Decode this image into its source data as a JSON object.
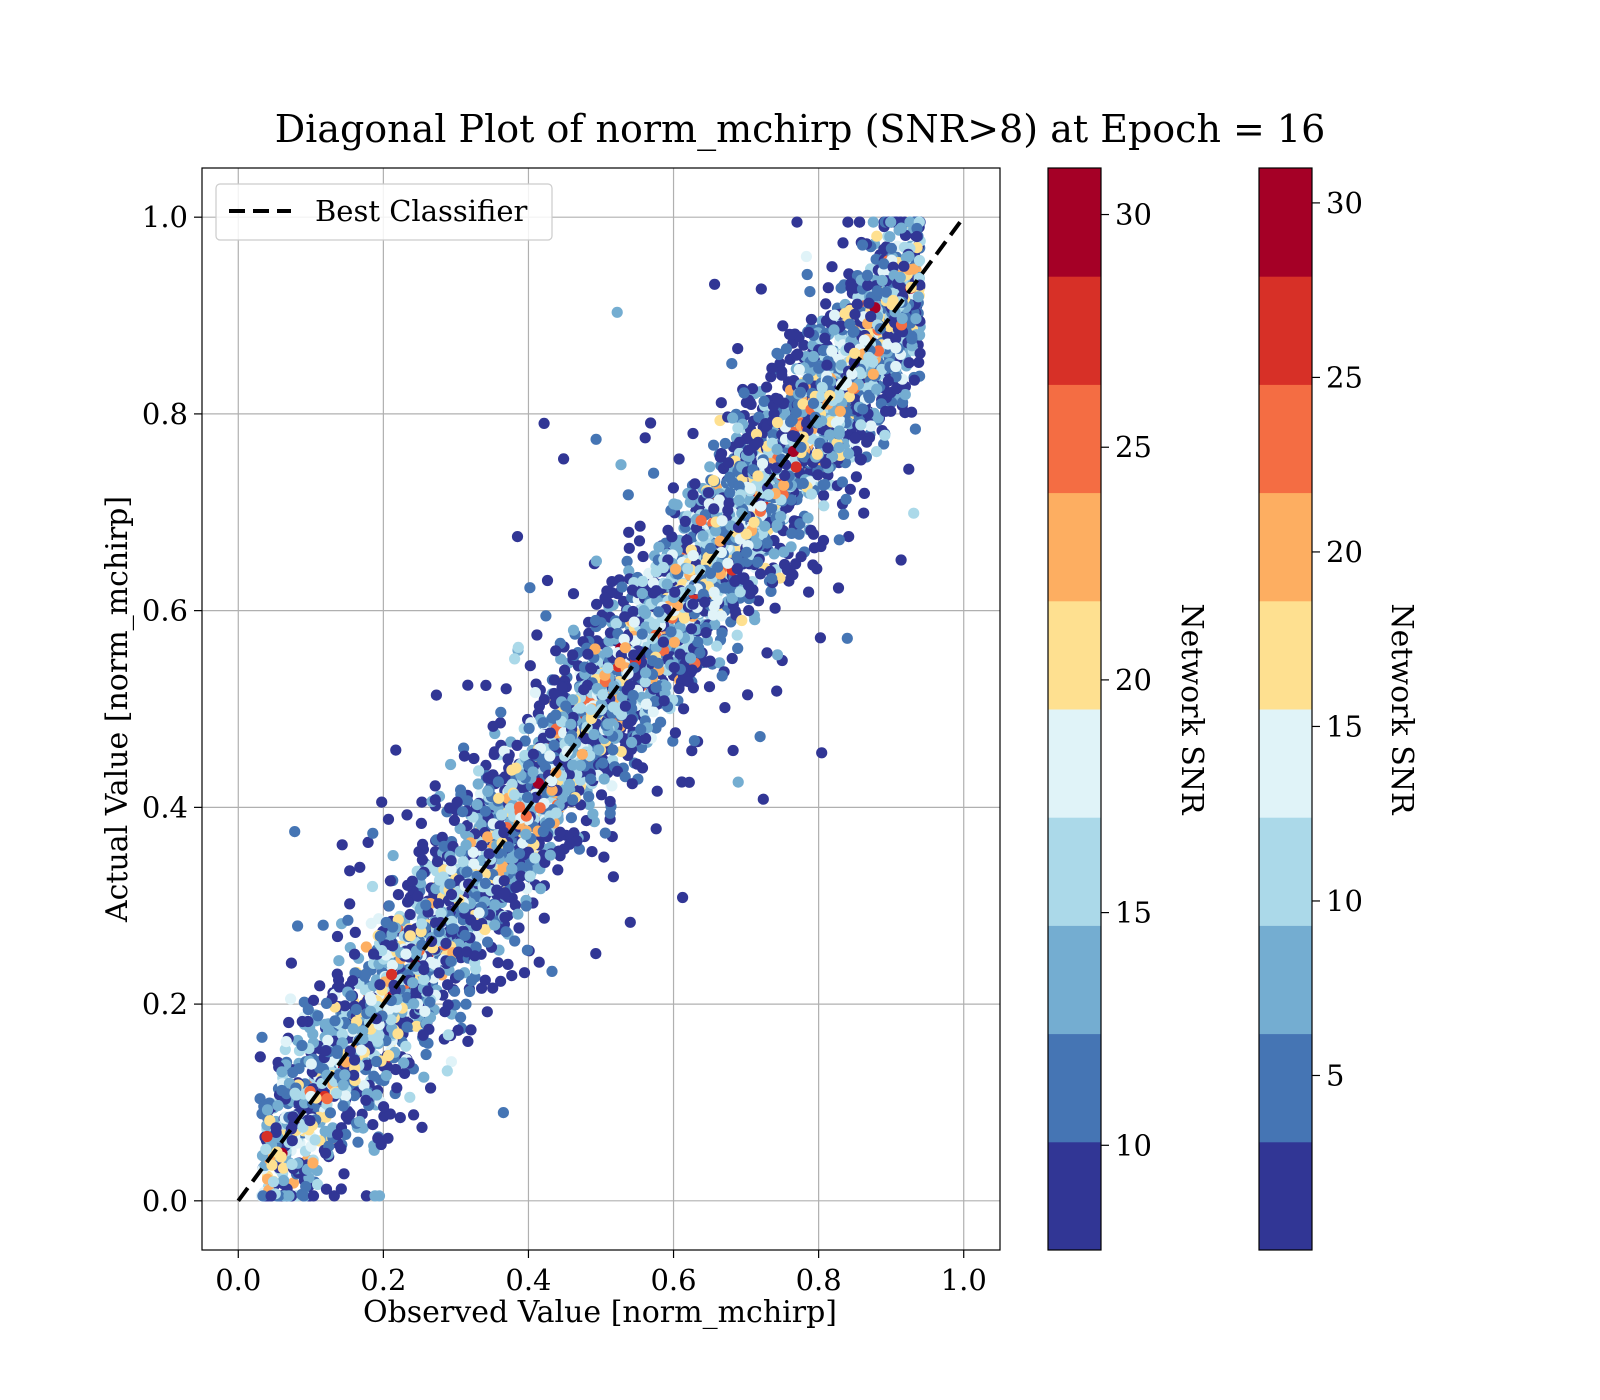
{
  "chart_data": {
    "type": "scatter",
    "title": "Diagonal Plot of norm_mchirp (SNR>8) at Epoch = 16",
    "xlabel": "Observed Value [norm_mchirp]",
    "ylabel": "Actual Value [norm_mchirp]",
    "xlim": [
      -0.05,
      1.05
    ],
    "ylim": [
      -0.05,
      1.05
    ],
    "x_ticks": [
      "0.0",
      "0.2",
      "0.4",
      "0.6",
      "0.8",
      "1.0"
    ],
    "y_ticks": [
      "0.0",
      "0.2",
      "0.4",
      "0.6",
      "0.8",
      "1.0"
    ],
    "grid": true,
    "legend": {
      "position": "top-left",
      "entries": [
        {
          "label": "Best Classifier",
          "style": "dashed",
          "color": "#000000"
        }
      ]
    },
    "reference_line": {
      "label": "Best Classifier",
      "x": [
        0.0,
        1.0
      ],
      "y": [
        0.0,
        1.0
      ]
    },
    "scatter_sample": {
      "color_key": "Network SNR",
      "approx_points_shown": 6000,
      "noise_sd_near_diagonal": 0.04,
      "x_range": [
        0.03,
        0.94
      ],
      "snr_range": [
        8,
        31
      ]
    },
    "colorbars": [
      {
        "label": "Network SNR",
        "range": [
          7.75,
          31.0
        ],
        "ticks": [
          10,
          15,
          20,
          25,
          30
        ],
        "tick_labels": [
          "10",
          "15",
          "20",
          "25",
          "30"
        ],
        "band_count": 10
      },
      {
        "label": "Network SNR",
        "range": [
          0.0,
          31.0
        ],
        "ticks": [
          5,
          10,
          15,
          20,
          25,
          30
        ],
        "tick_labels": [
          "5",
          "10",
          "15",
          "20",
          "25",
          "30"
        ],
        "band_count": 10
      }
    ],
    "colormap": [
      "#313695",
      "#4575b4",
      "#74add1",
      "#abd9e9",
      "#e0f3f8",
      "#fee090",
      "#fdae61",
      "#f46d43",
      "#d73027",
      "#a50026"
    ]
  }
}
